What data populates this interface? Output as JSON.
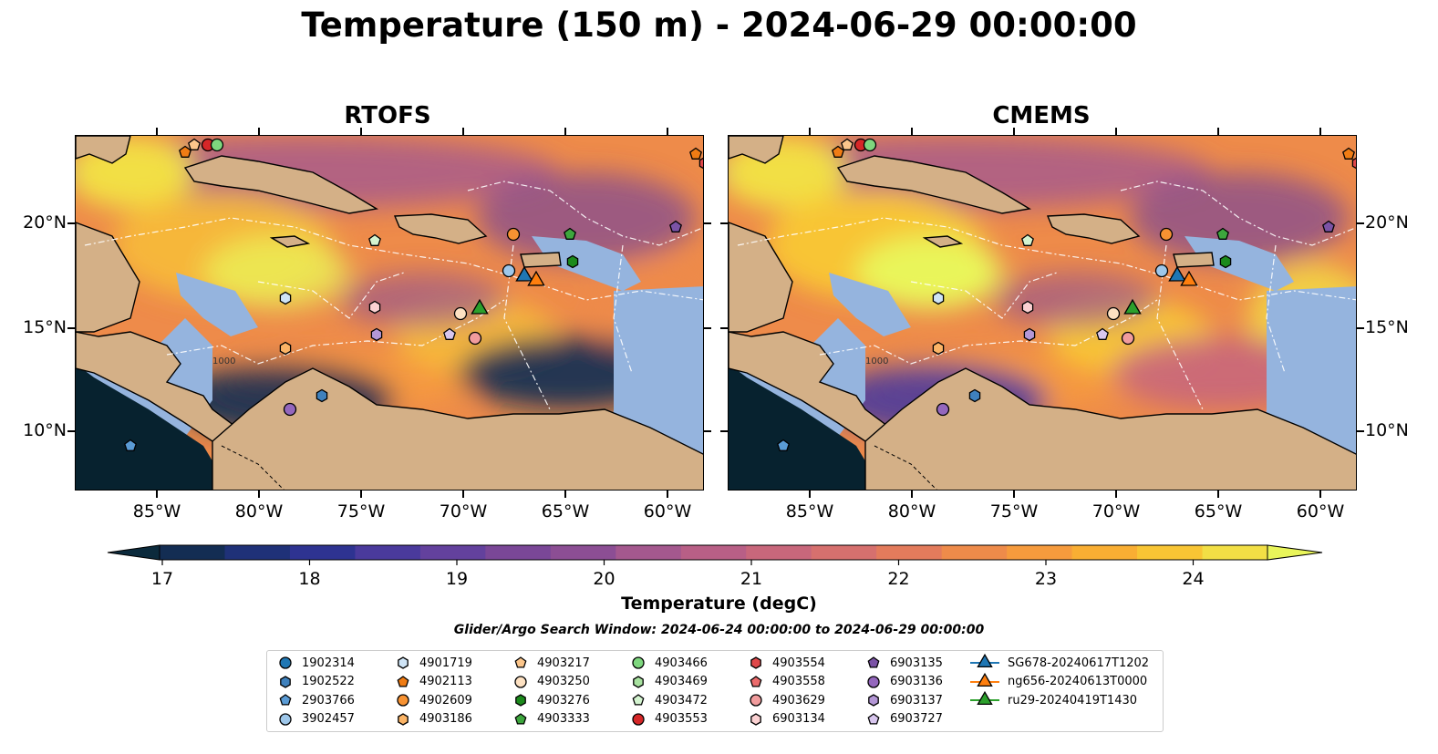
{
  "title": "Temperature (150 m) - 2024-06-29 00:00:00",
  "panels": [
    {
      "title": "RTOFS",
      "variant": "rtofs"
    },
    {
      "title": "CMEMS",
      "variant": "cmems"
    }
  ],
  "lon_ticks": [
    "85°W",
    "80°W",
    "75°W",
    "70°W",
    "65°W",
    "60°W"
  ],
  "lat_ticks": [
    "20°N",
    "15°N",
    "10°N"
  ],
  "colorbar": {
    "label": "Temperature (degC)",
    "ticks": [
      "17",
      "18",
      "19",
      "20",
      "21",
      "22",
      "23",
      "24"
    ],
    "colors": [
      "#0b2a3c",
      "#132d53",
      "#1f3178",
      "#2e3391",
      "#4a3a9c",
      "#63419d",
      "#7a4797",
      "#8c4e94",
      "#a4588e",
      "#b85f86",
      "#c8677b",
      "#d6706e",
      "#e37b5c",
      "#ee8b4a",
      "#f69b3d",
      "#f9ae33",
      "#f8c534",
      "#f2df45",
      "#e9f55a"
    ]
  },
  "search_window": "Glider/Argo Search Window: 2024-06-24 00:00:00 to 2024-06-29 00:00:00",
  "map_colors": {
    "land": "#d4b087",
    "shelf": "#95b4de",
    "deep": "#07222f"
  },
  "contour_labels": [
    "1000"
  ],
  "legend": [
    {
      "label": "1902314",
      "marker": "circle",
      "color": "#1f77b4"
    },
    {
      "label": "1902522",
      "marker": "hexagon",
      "color": "#3f81bd"
    },
    {
      "label": "2903766",
      "marker": "pentagon",
      "color": "#5a9bd5"
    },
    {
      "label": "3902457",
      "marker": "circle",
      "color": "#9ec7ea"
    },
    {
      "label": "4901719",
      "marker": "hexagon",
      "color": "#cfe4f6"
    },
    {
      "label": "4902113",
      "marker": "pentagon",
      "color": "#f07c14"
    },
    {
      "label": "4902609",
      "marker": "circle",
      "color": "#f79232"
    },
    {
      "label": "4903186",
      "marker": "hexagon",
      "color": "#fbb466"
    },
    {
      "label": "4903217",
      "marker": "pentagon",
      "color": "#fcc68b"
    },
    {
      "label": "4903250",
      "marker": "circle",
      "color": "#fde1c2"
    },
    {
      "label": "4903276",
      "marker": "hexagon",
      "color": "#1c8a1c"
    },
    {
      "label": "4903333",
      "marker": "pentagon",
      "color": "#3da63d"
    },
    {
      "label": "4903466",
      "marker": "circle",
      "color": "#7ed77e"
    },
    {
      "label": "4903469",
      "marker": "hexagon",
      "color": "#a8e2a0"
    },
    {
      "label": "4903472",
      "marker": "pentagon",
      "color": "#d4f4d0"
    },
    {
      "label": "4903553",
      "marker": "circle",
      "color": "#d62728"
    },
    {
      "label": "4903554",
      "marker": "hexagon",
      "color": "#e0484a"
    },
    {
      "label": "4903558",
      "marker": "pentagon",
      "color": "#eb6b6c"
    },
    {
      "label": "4903629",
      "marker": "circle",
      "color": "#f19c9d"
    },
    {
      "label": "6903134",
      "marker": "hexagon",
      "color": "#fbd1d2"
    },
    {
      "label": "6903135",
      "marker": "pentagon",
      "color": "#7b53a6"
    },
    {
      "label": "6903136",
      "marker": "circle",
      "color": "#9467bd"
    },
    {
      "label": "6903137",
      "marker": "hexagon",
      "color": "#b497d6"
    },
    {
      "label": "6903727",
      "marker": "pentagon",
      "color": "#d8c6ee"
    },
    {
      "label": "SG678-20240617T1202",
      "marker": "triangle-line",
      "color": "#1f77b4"
    },
    {
      "label": "ng656-20240613T0000",
      "marker": "triangle-line",
      "color": "#ff7f0e"
    },
    {
      "label": "ru29-20240419T1430",
      "marker": "triangle-line",
      "color": "#2ca02c"
    }
  ]
}
